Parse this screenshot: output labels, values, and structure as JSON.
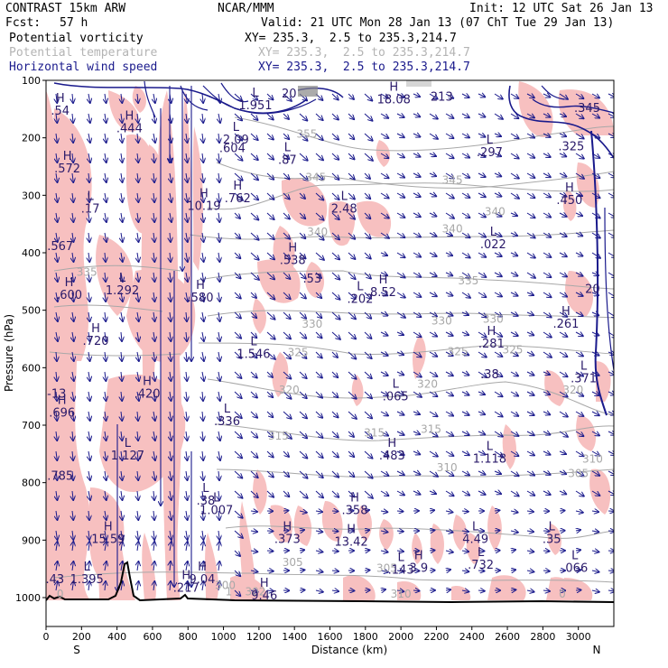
{
  "header": {
    "model": "CONTRAST 15km ARW",
    "fcst_label": "Fcst:",
    "fcst_value": "57 h",
    "center": "NCAR/MMM",
    "init": "Init: 12 UTC Sat 26 Jan 13",
    "valid": "Valid: 21 UTC Mon 28 Jan 13 (07 ChT Tue 29 Jan 13)",
    "fields": [
      {
        "name": "Potential vorticity",
        "xy": "XY= 235.3,  2.5 to 235.3,214.7",
        "color": "#000000"
      },
      {
        "name": "Potential temperature",
        "xy": "XY= 235.3,  2.5 to 235.3,214.7",
        "color": "#b4b4b4"
      },
      {
        "name": "Horizontal wind speed",
        "xy": "XY= 235.3,  2.5 to 235.3,214.7",
        "color": "#1a1a8c"
      }
    ]
  },
  "colors": {
    "pv_shading": "#f7c0c0",
    "theta_contour": "#a8a8a8",
    "wind_contour": "#1a1a8c",
    "arrows": "#1a1a8c",
    "terrain": "#000000",
    "hl_labels": "#2a1a6a"
  },
  "chart_data": {
    "type": "cross-section",
    "xlabel": "Distance (km)",
    "ylabel": "Pressure (hPa)",
    "x_ticks": [
      0,
      200,
      400,
      600,
      800,
      1000,
      1200,
      1400,
      1600,
      1800,
      2000,
      2200,
      2400,
      2600,
      2800,
      3000
    ],
    "xlim": [
      0,
      3200
    ],
    "y_ticks": [
      100,
      200,
      300,
      400,
      500,
      600,
      700,
      800,
      900,
      1000
    ],
    "ylim": [
      1000,
      100
    ],
    "endpoint_left": "S",
    "endpoint_right": "N",
    "theta_labels": [
      {
        "v": "355",
        "x": 1470,
        "p": 200
      },
      {
        "v": "345",
        "x": 1520,
        "p": 275
      },
      {
        "v": "345",
        "x": 2290,
        "p": 280
      },
      {
        "v": "340",
        "x": 1530,
        "p": 370
      },
      {
        "v": "340",
        "x": 2290,
        "p": 365
      },
      {
        "v": "340",
        "x": 2530,
        "p": 335
      },
      {
        "v": "335",
        "x": 230,
        "p": 440
      },
      {
        "v": "335",
        "x": 2380,
        "p": 455
      },
      {
        "v": "330",
        "x": 1500,
        "p": 530
      },
      {
        "v": "330",
        "x": 2230,
        "p": 525
      },
      {
        "v": "330",
        "x": 2520,
        "p": 522
      },
      {
        "v": "325",
        "x": 1420,
        "p": 580
      },
      {
        "v": "325",
        "x": 2320,
        "p": 578
      },
      {
        "v": "325",
        "x": 2630,
        "p": 575
      },
      {
        "v": "320",
        "x": 1370,
        "p": 645
      },
      {
        "v": "320",
        "x": 2150,
        "p": 635
      },
      {
        "v": "320",
        "x": 2970,
        "p": 645
      },
      {
        "v": "315",
        "x": 1310,
        "p": 725
      },
      {
        "v": "315",
        "x": 1850,
        "p": 720
      },
      {
        "v": "315",
        "x": 2170,
        "p": 713
      },
      {
        "v": "310",
        "x": 2260,
        "p": 780
      },
      {
        "v": "310",
        "x": 3080,
        "p": 765
      },
      {
        "v": "305",
        "x": 3000,
        "p": 790
      },
      {
        "v": "305",
        "x": 1390,
        "p": 945
      },
      {
        "v": "305",
        "x": 1920,
        "p": 955
      },
      {
        "v": "302",
        "x": 1180,
        "p": 996
      },
      {
        "v": "300",
        "x": 1010,
        "p": 985
      },
      {
        "v": "310",
        "x": 2000,
        "p": 1000
      },
      {
        "v": "1",
        "x": 1030,
        "p": 996
      },
      {
        "v": "0",
        "x": 2910,
        "p": 1000
      },
      {
        "v": "0",
        "x": 80,
        "p": 1000
      }
    ],
    "extrema": [
      {
        "t": "H",
        "v": ".54",
        "x": 80,
        "p": 160
      },
      {
        "t": "H",
        "v": ".444",
        "x": 470,
        "p": 190
      },
      {
        "t": "H",
        "v": ".572",
        "x": 120,
        "p": 260
      },
      {
        "t": "L",
        "v": ".17",
        "x": 250,
        "p": 330
      },
      {
        "t": "",
        "v": ".567",
        "x": 80,
        "p": 395
      },
      {
        "t": "H",
        "v": ".600",
        "x": 130,
        "p": 480
      },
      {
        "t": "L",
        "v": "1.292",
        "x": 430,
        "p": 472
      },
      {
        "t": "H",
        "v": ".720",
        "x": 280,
        "p": 560
      },
      {
        "t": "",
        "v": "-13",
        "x": 60,
        "p": 652
      },
      {
        "t": "H",
        "v": ".696",
        "x": 90,
        "p": 685
      },
      {
        "t": "H",
        "v": ".420",
        "x": 570,
        "p": 652
      },
      {
        "t": "L",
        "v": "1.127",
        "x": 460,
        "p": 760
      },
      {
        "t": "",
        "v": ".785",
        "x": 80,
        "p": 795
      },
      {
        "t": "H",
        "v": "15.59",
        "x": 350,
        "p": 905
      },
      {
        "t": "L",
        "v": "1.395",
        "x": 230,
        "p": 975
      },
      {
        "t": "",
        "v": ".43",
        "x": 50,
        "p": 975
      },
      {
        "t": "H",
        "v": ".217",
        "x": 790,
        "p": 990
      },
      {
        "t": "H",
        "v": "9.04",
        "x": 880,
        "p": 975
      },
      {
        "t": "H",
        "v": "10.19",
        "x": 890,
        "p": 325
      },
      {
        "t": "H",
        "v": ".580",
        "x": 870,
        "p": 485
      },
      {
        "t": "L",
        "v": "2.09",
        "x": 1070,
        "p": 210
      },
      {
        "t": "",
        "v": ".604",
        "x": 1050,
        "p": 225
      },
      {
        "t": "L",
        "v": "1.951",
        "x": 1180,
        "p": 150
      },
      {
        "t": "",
        "v": "20",
        "x": 1370,
        "p": 130
      },
      {
        "t": "L",
        "v": ".87",
        "x": 1360,
        "p": 245
      },
      {
        "t": "H",
        "v": ".762",
        "x": 1080,
        "p": 312
      },
      {
        "t": "L",
        "v": "1.546",
        "x": 1170,
        "p": 583
      },
      {
        "t": "L",
        "v": ".336",
        "x": 1020,
        "p": 700
      },
      {
        "t": "L",
        "v": ".38",
        "x": 900,
        "p": 838
      },
      {
        "t": "L",
        "v": "1.007",
        "x": 960,
        "p": 855
      },
      {
        "t": "H",
        "v": "9.46",
        "x": 1230,
        "p": 1003
      },
      {
        "t": "H",
        "v": ".373",
        "x": 1360,
        "p": 905
      },
      {
        "t": "L",
        "v": "2.48",
        "x": 1680,
        "p": 330
      },
      {
        "t": "H",
        "v": ".538",
        "x": 1390,
        "p": 420
      },
      {
        "t": "",
        "v": ".53",
        "x": 1500,
        "p": 452
      },
      {
        "t": "H",
        "v": "8.52",
        "x": 1900,
        "p": 475
      },
      {
        "t": "L",
        "v": ".202",
        "x": 1770,
        "p": 487
      },
      {
        "t": "H",
        "v": ".358",
        "x": 1740,
        "p": 855
      },
      {
        "t": "H",
        "v": "13.42",
        "x": 1720,
        "p": 910
      },
      {
        "t": "L",
        "v": ".065",
        "x": 1970,
        "p": 657
      },
      {
        "t": "H",
        "v": ".483",
        "x": 1950,
        "p": 760
      },
      {
        "t": "L",
        "v": ".143",
        "x": 2000,
        "p": 958
      },
      {
        "t": "H",
        "v": "3.9",
        "x": 2100,
        "p": 955
      },
      {
        "t": "H",
        "v": "18.08",
        "x": 1960,
        "p": 140
      },
      {
        "t": "",
        "v": "213",
        "x": 2230,
        "p": 135
      },
      {
        "t": "L",
        "v": ".297",
        "x": 2500,
        "p": 232
      },
      {
        "t": "L",
        "v": ".022",
        "x": 2520,
        "p": 392
      },
      {
        "t": "H",
        "v": ".281",
        "x": 2510,
        "p": 565
      },
      {
        "t": "",
        "v": ".38",
        "x": 2500,
        "p": 618
      },
      {
        "t": "L",
        "v": "1.118",
        "x": 2500,
        "p": 765
      },
      {
        "t": "L",
        "v": "4.49",
        "x": 2420,
        "p": 905
      },
      {
        "t": "L",
        "v": ".732",
        "x": 2450,
        "p": 950
      },
      {
        "t": "H",
        "v": ".450",
        "x": 2950,
        "p": 315
      },
      {
        "t": "H",
        "v": ".261",
        "x": 2930,
        "p": 530
      },
      {
        "t": "L",
        "v": ".371",
        "x": 3030,
        "p": 625
      },
      {
        "t": "",
        "v": "20",
        "x": 3080,
        "p": 470
      },
      {
        "t": "L",
        "v": ".35",
        "x": 2850,
        "p": 905
      },
      {
        "t": "L",
        "v": ".066",
        "x": 2980,
        "p": 955
      },
      {
        "t": "",
        "v": ".345",
        "x": 3050,
        "p": 155
      },
      {
        "t": "",
        "v": ".325",
        "x": 2960,
        "p": 222
      }
    ]
  }
}
